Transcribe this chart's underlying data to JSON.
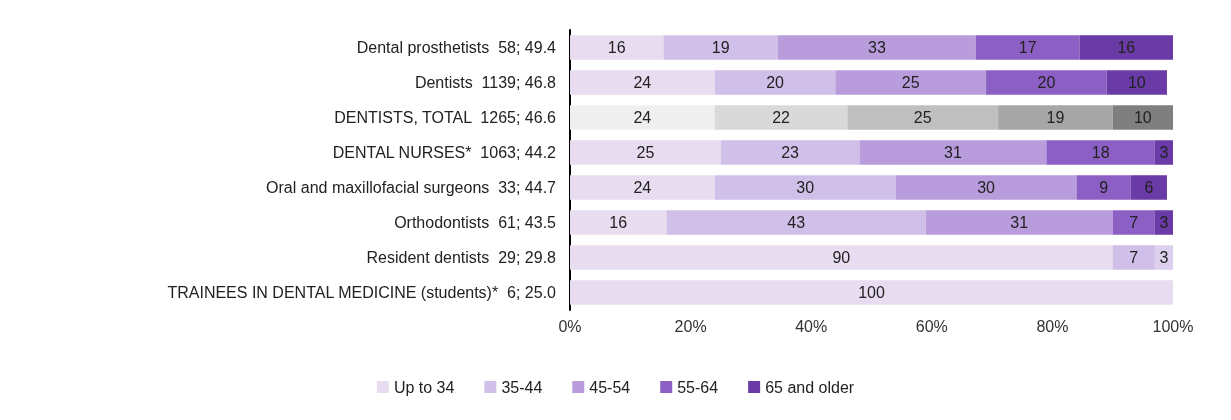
{
  "chart_data": {
    "type": "bar",
    "orientation": "horizontal",
    "stacked": true,
    "categories": [
      "Dental prosthetists  58; 49.4",
      "Dentists  1139; 46.8",
      "DENTISTS, TOTAL  1265; 46.6",
      "DENTAL NURSES*  1063; 44.2",
      "Oral and maxillofacial surgeons  33; 44.7",
      "Orthodontists  61; 43.5",
      "Resident dentists  29; 29.8",
      "TRAINEES IN DENTAL MEDICINE (students)*  6; 25.0"
    ],
    "series": [
      {
        "name": "Up to 34",
        "color": "#e8dcf0",
        "colors": [
          "#e8dcf0",
          "#e8dcf0",
          "#efefef",
          "#e8dcf0",
          "#e8dcf0",
          "#e8dcf0",
          "#e8dcf0",
          "#e8dcf0"
        ],
        "values": [
          15.5,
          24,
          24,
          25,
          24,
          16,
          90,
          100
        ],
        "value_labels": [
          "16",
          "24",
          "24",
          "25",
          "24",
          "16",
          "90",
          "100"
        ]
      },
      {
        "name": "35-44",
        "color": "#d0bfe8",
        "colors": [
          "#d0bfe8",
          "#d0bfe8",
          "#d9d9d9",
          "#d0bfe8",
          "#d0bfe8",
          "#d0bfe8",
          "#d0bfe8",
          null
        ],
        "values": [
          19.0,
          20,
          22,
          23,
          30,
          43,
          7,
          null
        ],
        "value_labels": [
          "19",
          "20",
          "22",
          "23",
          "30",
          "43",
          "7",
          null
        ]
      },
      {
        "name": "45-54",
        "color": "#b89cdc",
        "colors": [
          "#b89cdc",
          "#b89cdc",
          "#bfbfbf",
          "#b89cdc",
          "#b89cdc",
          "#b89cdc",
          "#dcd0ee",
          null
        ],
        "values": [
          32.8,
          25,
          25,
          31,
          30,
          31,
          3,
          null
        ],
        "value_labels": [
          "33",
          "25",
          "25",
          "31",
          "30",
          "31",
          "3",
          null
        ]
      },
      {
        "name": "55-64",
        "color": "#8c5fc4",
        "colors": [
          "#8c5fc4",
          "#8c5fc4",
          "#a6a6a6",
          "#8c5fc4",
          "#8c5fc4",
          "#8c5fc4",
          null,
          null
        ],
        "values": [
          17.2,
          20,
          19,
          18,
          9,
          7,
          null,
          null
        ],
        "value_labels": [
          "17",
          "20",
          "19",
          "18",
          "9",
          "7",
          null,
          null
        ]
      },
      {
        "name": "65 and older",
        "color": "#6a3aa6",
        "colors": [
          "#6a3aa6",
          "#6a3aa6",
          "#7f7f7f",
          "#6a3aa6",
          "#6a3aa6",
          "#6a3aa6",
          null,
          null
        ],
        "values": [
          15.5,
          10,
          10,
          3,
          6,
          3,
          null,
          null
        ],
        "value_labels": [
          "16",
          "10",
          "10",
          "3",
          "6",
          "3",
          null,
          null
        ]
      }
    ],
    "xlim": [
      0,
      100
    ],
    "xticks": [
      {
        "value": 0,
        "label": "0%"
      },
      {
        "value": 20,
        "label": "20%"
      },
      {
        "value": 40,
        "label": "40%"
      },
      {
        "value": 60,
        "label": "60%"
      },
      {
        "value": 80,
        "label": "80%"
      },
      {
        "value": 100,
        "label": "100%"
      }
    ],
    "grid": false,
    "legend": "bottom"
  }
}
